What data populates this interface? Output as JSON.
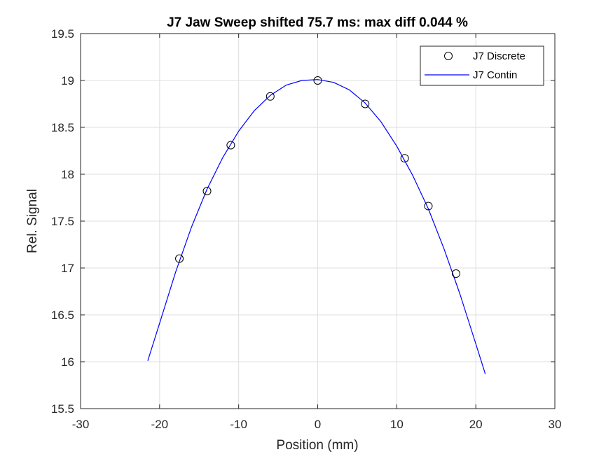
{
  "chart_data": {
    "type": "line",
    "title": "J7 Jaw Sweep shifted  75.7 ms: max diff 0.044 %",
    "xlabel": "Position (mm)",
    "ylabel": "Rel. Signal",
    "xlim": [
      -30,
      30
    ],
    "ylim": [
      15.5,
      19.5
    ],
    "xticks": [
      -30,
      -20,
      -10,
      0,
      10,
      20,
      30
    ],
    "yticks": [
      15.5,
      16,
      16.5,
      17,
      17.5,
      18,
      18.5,
      19,
      19.5
    ],
    "grid": true,
    "legend_position": "top-right",
    "series": [
      {
        "name": "J7 Discrete",
        "style": "markers",
        "marker": "circle",
        "color": "#000000",
        "x": [
          -17.5,
          -14,
          -11,
          -6,
          0,
          6,
          11,
          14,
          17.5
        ],
        "y": [
          17.1,
          17.82,
          18.31,
          18.83,
          19.0,
          18.75,
          18.17,
          17.66,
          16.94
        ]
      },
      {
        "name": "J7 Contin",
        "style": "line",
        "color": "#0000ff",
        "x": [
          -21.5,
          -20,
          -18,
          -16,
          -14,
          -12,
          -10,
          -8,
          -6,
          -4,
          -2,
          0,
          2,
          4,
          6,
          8,
          10,
          12,
          14,
          16,
          18,
          20,
          21.2
        ],
        "y": [
          16.01,
          16.41,
          16.95,
          17.43,
          17.84,
          18.18,
          18.46,
          18.68,
          18.84,
          18.95,
          19.0,
          19.01,
          18.98,
          18.9,
          18.76,
          18.56,
          18.3,
          17.99,
          17.63,
          17.2,
          16.72,
          16.19,
          15.87
        ]
      }
    ]
  }
}
